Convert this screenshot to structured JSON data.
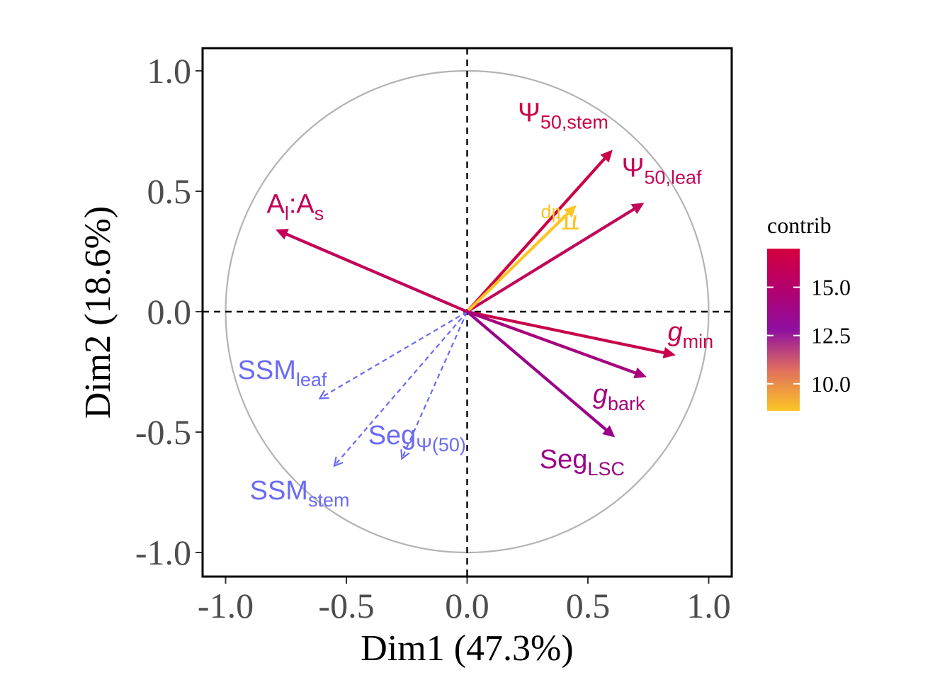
{
  "chart_data": {
    "type": "scatter",
    "subtype": "pca-variable-correlation-circle",
    "xlabel": "Dim1 (47.3%)",
    "ylabel": "Dim2 (18.6%)",
    "xlim": [
      -1.1,
      1.1
    ],
    "ylim": [
      -1.1,
      1.1
    ],
    "xticks": [
      -1.0,
      -0.5,
      0.0,
      0.5,
      1.0
    ],
    "yticks": [
      -1.0,
      -0.5,
      0.0,
      0.5,
      1.0
    ],
    "x_tick_labels": [
      "-1.0",
      "-0.5",
      "0.0",
      "0.5",
      "1.0"
    ],
    "y_tick_labels": [
      "-1.0",
      "-0.5",
      "0.0",
      "0.5",
      "1.0"
    ],
    "grid": false,
    "unit_circle": true,
    "reference_lines": {
      "x": 0,
      "y": 0,
      "style": "dashed"
    },
    "legend": {
      "title": "contrib",
      "position": "right",
      "range": [
        8.6,
        17.0
      ],
      "ticks": [
        10.0,
        12.5,
        15.0
      ],
      "tick_labels": [
        "10.0",
        "12.5",
        "15.0"
      ],
      "colors": [
        "#fcc524",
        "#e0705e",
        "#8e0fa0",
        "#b3006e",
        "#d4003e"
      ]
    },
    "active_variables": [
      {
        "main": "Ψ",
        "sub": "50,stem",
        "x": 0.6,
        "y": 0.67,
        "contrib": 16.6,
        "color": "#cc0044",
        "label_pos": [
          0.21,
          0.79
        ]
      },
      {
        "main": "Ψ",
        "sub": "50,leaf",
        "x": 0.73,
        "y": 0.45,
        "contrib": 16.0,
        "color": "#c1085a",
        "label_pos": [
          0.64,
          0.56
        ]
      },
      {
        "main": "π",
        "sub": "tlp",
        "x": 0.45,
        "y": 0.44,
        "contrib": 8.6,
        "color": "#fcc524",
        "label_pos": [
          0.26,
          0.33
        ],
        "style": "flipped-label"
      },
      {
        "main": "A",
        "sub": "l",
        "main2": ":A",
        "sub2": "s",
        "x": -0.79,
        "y": 0.34,
        "contrib": 15.6,
        "color": "#c20058",
        "label_pos": [
          -0.83,
          0.41
        ]
      },
      {
        "main": "g",
        "sub": "min",
        "x": 0.86,
        "y": -0.18,
        "contrib": 16.2,
        "color": "#c6004b",
        "label_pos": [
          0.83,
          -0.12
        ],
        "italic_main": true
      },
      {
        "main": "g",
        "sub": "bark",
        "x": 0.74,
        "y": -0.27,
        "contrib": 14.2,
        "color": "#a6007d",
        "label_pos": [
          0.52,
          -0.38
        ],
        "italic_main": true
      },
      {
        "main": "Seg",
        "sub": "LSC",
        "x": 0.61,
        "y": -0.52,
        "contrib": 13.6,
        "color": "#9a0088",
        "label_pos": [
          0.3,
          -0.65
        ]
      }
    ],
    "supplementary_variables": [
      {
        "main": "SSM",
        "sub": "leaf",
        "x": -0.61,
        "y": -0.36,
        "color": "#6a6af5",
        "label_pos": [
          -0.95,
          -0.28
        ]
      },
      {
        "main": "Seg",
        "sub": "Ψ(50)",
        "x": -0.27,
        "y": -0.61,
        "color": "#6a6af5",
        "label_pos": [
          -0.41,
          -0.55
        ]
      },
      {
        "main": "SSM",
        "sub": "stem",
        "x": -0.55,
        "y": -0.64,
        "color": "#6a6af5",
        "label_pos": [
          -0.9,
          -0.78
        ]
      }
    ]
  }
}
